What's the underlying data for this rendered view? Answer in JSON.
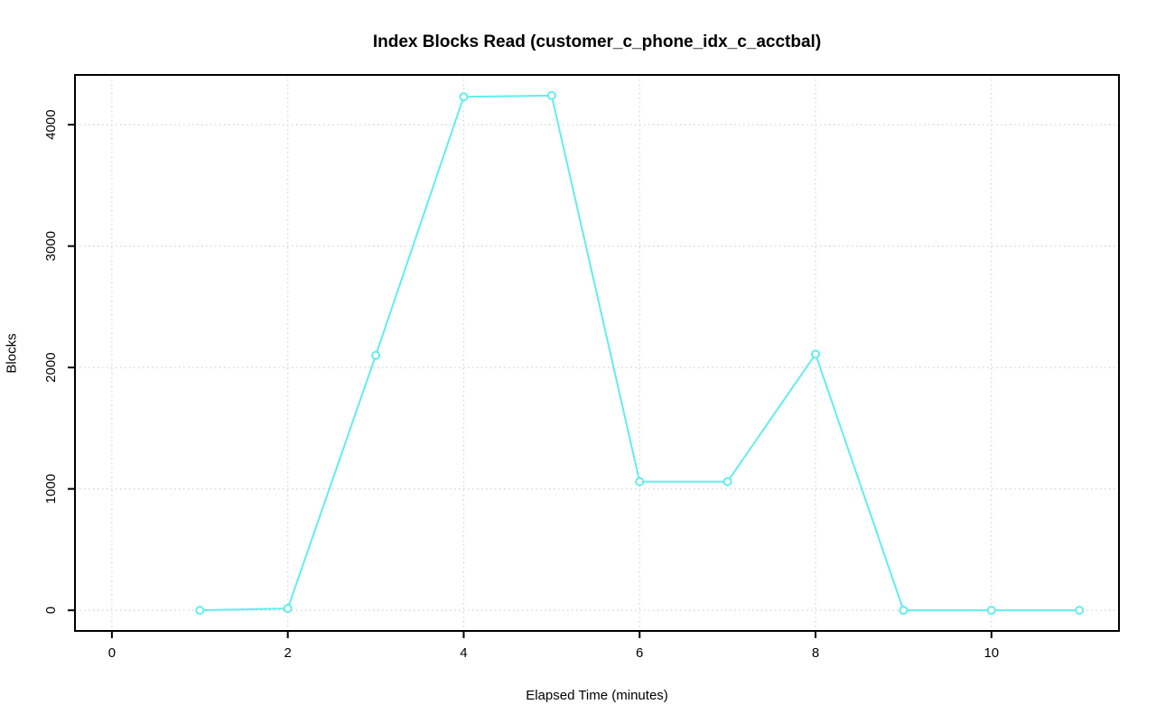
{
  "chart_data": {
    "type": "line",
    "title": "Index Blocks Read (customer_c_phone_idx_c_acctbal)",
    "xlabel": "Elapsed Time (minutes)",
    "ylabel": "Blocks",
    "x": [
      1,
      2,
      3,
      4,
      5,
      6,
      7,
      8,
      9,
      10,
      11
    ],
    "values": [
      0,
      15,
      2100,
      4230,
      4240,
      1060,
      1060,
      2110,
      0,
      0,
      0
    ],
    "series_name": "index blocks read",
    "x_ticks": [
      0,
      2,
      4,
      6,
      8,
      10
    ],
    "y_ticks": [
      0,
      1000,
      2000,
      3000,
      4000
    ],
    "xlim": [
      -0.42,
      11.45
    ],
    "ylim": [
      -170,
      4410
    ],
    "grid": true,
    "legend": "none",
    "marker": "open-circle",
    "line_color": "#62EDED",
    "grid_color": "#D2D2D2",
    "axis_color": "#000000",
    "background_color": "#FFFFFF"
  }
}
